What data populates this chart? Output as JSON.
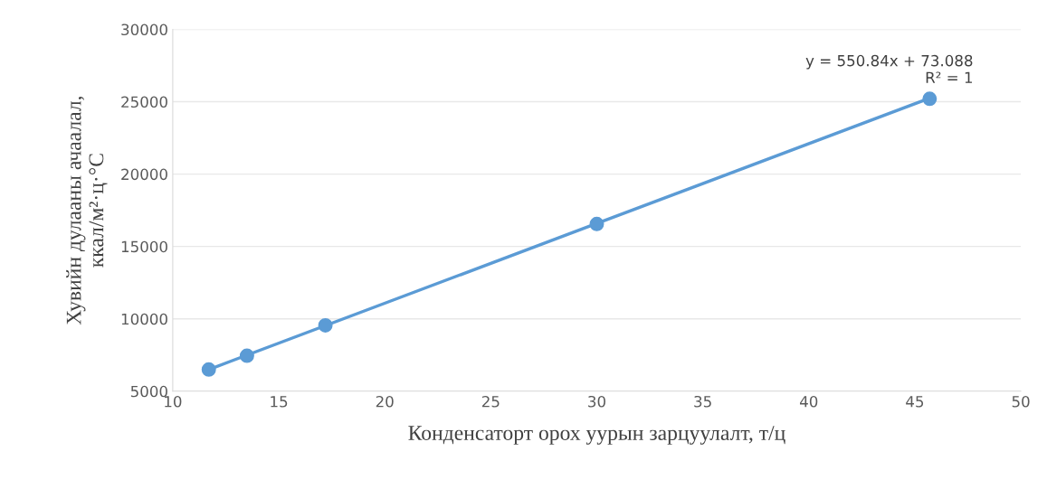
{
  "chart_data": {
    "type": "scatter",
    "xlabel": "Конденсаторт орох уурын зарцуулалт, т/ц",
    "ylabel": "Хувийн дулааны ачаалал,\nккал/м²·ц·°С",
    "series": [
      {
        "color": "#5b9bd5",
        "x": [
          11.7,
          13.5,
          17.2,
          30,
          45.7
        ],
        "values": [
          6500,
          7450,
          9550,
          16550,
          25200
        ],
        "marker": "circle"
      },
      {
        "type": "line",
        "color": "#5b9bd5",
        "x": [
          11.7,
          45.7
        ],
        "values": [
          6500,
          25250
        ],
        "line_style": "solid",
        "marker": "none"
      }
    ],
    "annotations": [
      "y = 550.84x + 73.088\nR² = 1"
    ],
    "xlim": [
      10,
      50
    ],
    "xticks": [
      10,
      15,
      20,
      25,
      30,
      35,
      40,
      45,
      50
    ],
    "ylim": [
      5000,
      30000
    ],
    "yticks": [
      5000,
      10000,
      15000,
      20000,
      25000,
      30000
    ],
    "grid": "y",
    "legend": false
  }
}
